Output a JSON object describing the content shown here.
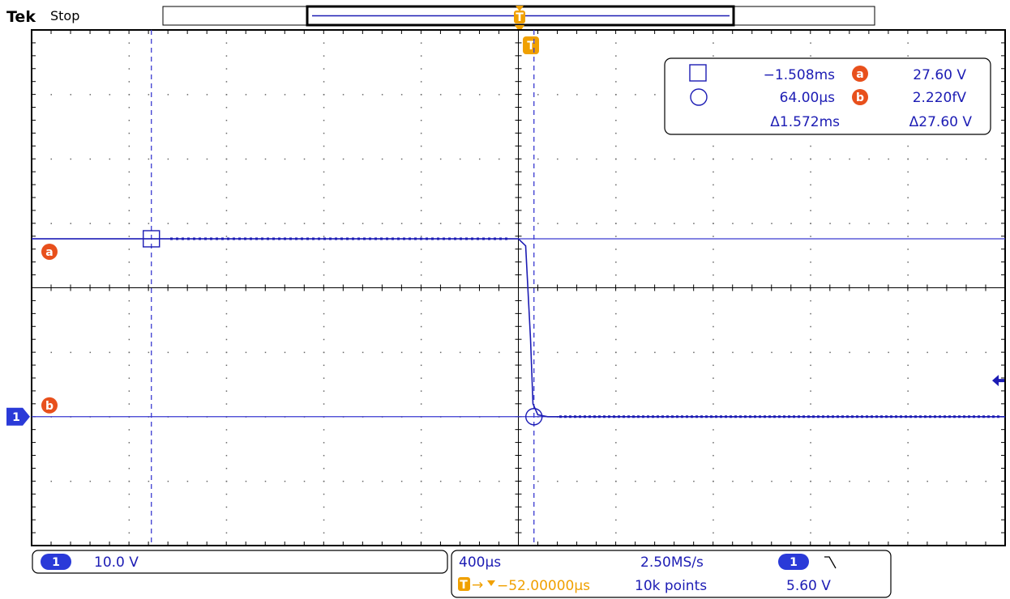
{
  "header": {
    "brand": "Tek",
    "acq_state": "Stop"
  },
  "colors": {
    "trace": "#1c1cb4",
    "cursor": "#3a3ad0",
    "trigger": "#f0a000",
    "cursor_badge": "#e8501c",
    "frame": "#000000"
  },
  "cursor_readout": {
    "t1": "−1.508ms",
    "t2": "64.00µs",
    "dt": "Δ1.572ms",
    "a_label": "a",
    "a_value": "27.60 V",
    "b_label": "b",
    "b_value": "2.220fV",
    "dv": "Δ27.60 V",
    "square_icon": "square-cursor-icon",
    "circle_icon": "circle-cursor-icon"
  },
  "channel": {
    "number": "1",
    "scale": "10.0 V"
  },
  "timebase": {
    "scale": "400µs",
    "sample_rate": "2.50MS/s",
    "trigger_marker": "T",
    "trigger_offset": "−52.00000µs",
    "record_length": "10k points"
  },
  "trigger": {
    "source": "1",
    "slope_icon": "falling-edge-icon",
    "level": "5.60 V"
  },
  "chart_data": {
    "type": "line",
    "title": "",
    "xlabel": "",
    "ylabel": "",
    "x_unit": "ms",
    "y_unit": "V",
    "xlim": [
      -2.0,
      2.0
    ],
    "ylim": [
      -20,
      60
    ],
    "divisions": {
      "x": 10,
      "y": 8
    },
    "grid": true,
    "series": [
      {
        "name": "",
        "x": [
          -2.0,
          -1.6,
          -1.2,
          -0.8,
          -0.4,
          -0.02,
          0.0,
          0.03,
          0.05,
          0.06,
          0.08,
          0.12,
          0.4,
          0.8,
          1.2,
          1.6,
          2.0
        ],
        "y": [
          27.6,
          27.6,
          27.6,
          27.6,
          27.6,
          27.6,
          27.6,
          26.5,
          12.0,
          2.0,
          0.3,
          0.0,
          0.0,
          0.0,
          0.0,
          0.0,
          0.0
        ]
      }
    ],
    "cursors": {
      "vertical": [
        -1.508,
        0.064
      ],
      "horizontal": [
        27.6,
        0.0
      ]
    },
    "trigger_level": 5.6,
    "ground_level": 0.0
  }
}
